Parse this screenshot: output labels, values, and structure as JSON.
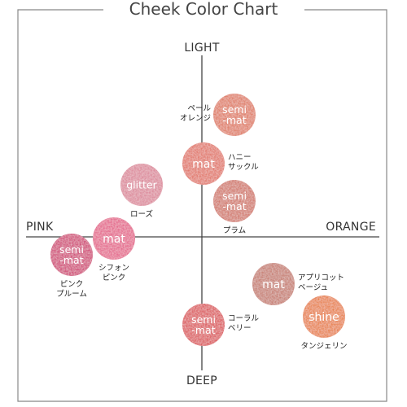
{
  "chart_data": {
    "type": "scatter",
    "title": "Cheek Color Chart",
    "axis_labels": {
      "top": "LIGHT",
      "bottom": "DEEP",
      "left": "PINK",
      "right": "ORANGE"
    },
    "xlim": [
      -1,
      1
    ],
    "ylim": [
      -1,
      1
    ],
    "grid": false,
    "legend": "none",
    "points": [
      {
        "finish": [
          "semi",
          "-mat"
        ],
        "name": [
          "ペール",
          "オレンジ"
        ],
        "x": 0.2,
        "y": 0.75,
        "color": "#e0806a",
        "speckle": "#f3b29f"
      },
      {
        "finish": [
          "mat"
        ],
        "name": [
          "ハニー",
          "サックル"
        ],
        "x": 0.01,
        "y": 0.45,
        "color": "#e27a6e",
        "speckle": "#f2aa9c"
      },
      {
        "finish": [
          "glitter"
        ],
        "name": [
          "ローズ"
        ],
        "x": -0.37,
        "y": 0.32,
        "color": "#dd8c9d",
        "speckle": "#f1b8c4"
      },
      {
        "finish": [
          "semi",
          "-mat"
        ],
        "name": [
          "プラム"
        ],
        "x": 0.2,
        "y": 0.22,
        "color": "#d37b6f",
        "speckle": "#eba699"
      },
      {
        "finish": [
          "mat"
        ],
        "name": [
          "シフォン",
          "ピンク"
        ],
        "x": -0.54,
        "y": -0.01,
        "color": "#e56a8e",
        "speckle": "#f49ab2"
      },
      {
        "finish": [
          "semi",
          "-mat"
        ],
        "name": [
          "ピンク",
          "プルーム"
        ],
        "x": -0.8,
        "y": -0.11,
        "color": "#d2507a",
        "speckle": "#e984a3"
      },
      {
        "finish": [
          "mat"
        ],
        "name": [
          "アプリコット",
          "ベージュ"
        ],
        "x": 0.44,
        "y": -0.29,
        "color": "#c88074",
        "speckle": "#e3a89c"
      },
      {
        "finish": [
          "shine"
        ],
        "name": [
          "タンジェリン"
        ],
        "x": 0.75,
        "y": -0.49,
        "color": "#e8834f",
        "speckle": "#f6b283"
      },
      {
        "finish": [
          "semi",
          "-mat"
        ],
        "name": [
          "コーラル",
          "ベリー"
        ],
        "x": 0.01,
        "y": -0.54,
        "color": "#dd5e62",
        "speckle": "#ef9291"
      }
    ]
  }
}
